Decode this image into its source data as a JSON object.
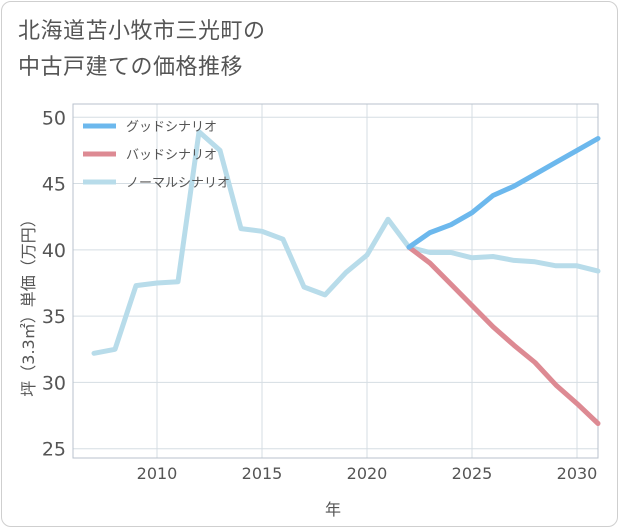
{
  "title_lines": [
    "北海道苫小牧市三光町の",
    "中古戸建ての価格推移"
  ],
  "chart_data": {
    "type": "line",
    "xlabel": "年",
    "ylabel": "坪（3.3㎡）単価（万円）",
    "xlim": [
      2006,
      2031
    ],
    "ylim": [
      24.3,
      51
    ],
    "xticks": [
      2010,
      2015,
      2020,
      2025,
      2030
    ],
    "yticks": [
      25,
      30,
      35,
      40,
      45,
      50
    ],
    "grid": true,
    "legend_position": "top-left",
    "series": [
      {
        "name": "グッドシナリオ",
        "color": "#6cb8ed",
        "x": [
          2022,
          2023,
          2024,
          2025,
          2026,
          2027,
          2028,
          2029,
          2030,
          2031
        ],
        "y": [
          40.2,
          41.3,
          41.9,
          42.8,
          44.1,
          44.8,
          45.7,
          46.6,
          47.5,
          48.4
        ]
      },
      {
        "name": "バッドシナリオ",
        "color": "#dd8a93",
        "x": [
          2022,
          2023,
          2024,
          2025,
          2026,
          2027,
          2028,
          2029,
          2030,
          2031
        ],
        "y": [
          40.2,
          39.0,
          37.4,
          35.8,
          34.2,
          32.8,
          31.5,
          29.8,
          28.4,
          26.9
        ]
      },
      {
        "name": "ノーマルシナリオ",
        "color": "#b8dcea",
        "x": [
          2007,
          2008,
          2009,
          2010,
          2011,
          2012,
          2013,
          2014,
          2015,
          2016,
          2017,
          2018,
          2019,
          2020,
          2021,
          2022,
          2023,
          2024,
          2025,
          2026,
          2027,
          2028,
          2029,
          2030,
          2031
        ],
        "y": [
          32.2,
          32.5,
          37.3,
          37.5,
          37.6,
          48.9,
          47.5,
          41.6,
          41.4,
          40.8,
          37.2,
          36.6,
          38.3,
          39.6,
          42.3,
          40.2,
          39.8,
          39.8,
          39.4,
          39.5,
          39.2,
          39.1,
          38.8,
          38.8,
          38.4
        ]
      }
    ]
  }
}
